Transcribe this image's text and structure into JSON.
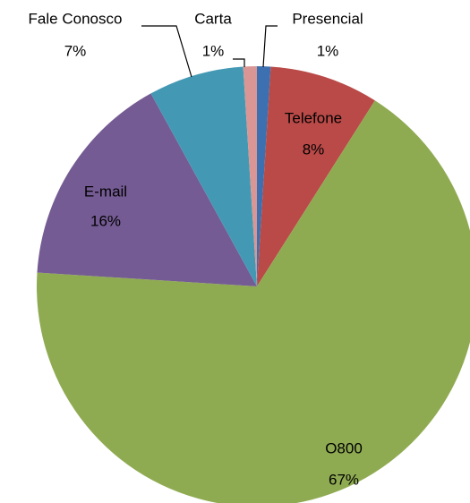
{
  "chart_data": {
    "type": "pie",
    "categories": [
      "Presencial",
      "Telefone",
      "O800",
      "E-mail",
      "Fale Conosco",
      "Carta"
    ],
    "values": [
      1,
      8,
      67,
      16,
      7,
      1
    ],
    "value_labels": [
      "1%",
      "8%",
      "67%",
      "16%",
      "7%",
      "1%"
    ],
    "colors": [
      "#3d70b0",
      "#b94a48",
      "#8fab52",
      "#745b93",
      "#4399b4",
      "#d99694"
    ]
  }
}
